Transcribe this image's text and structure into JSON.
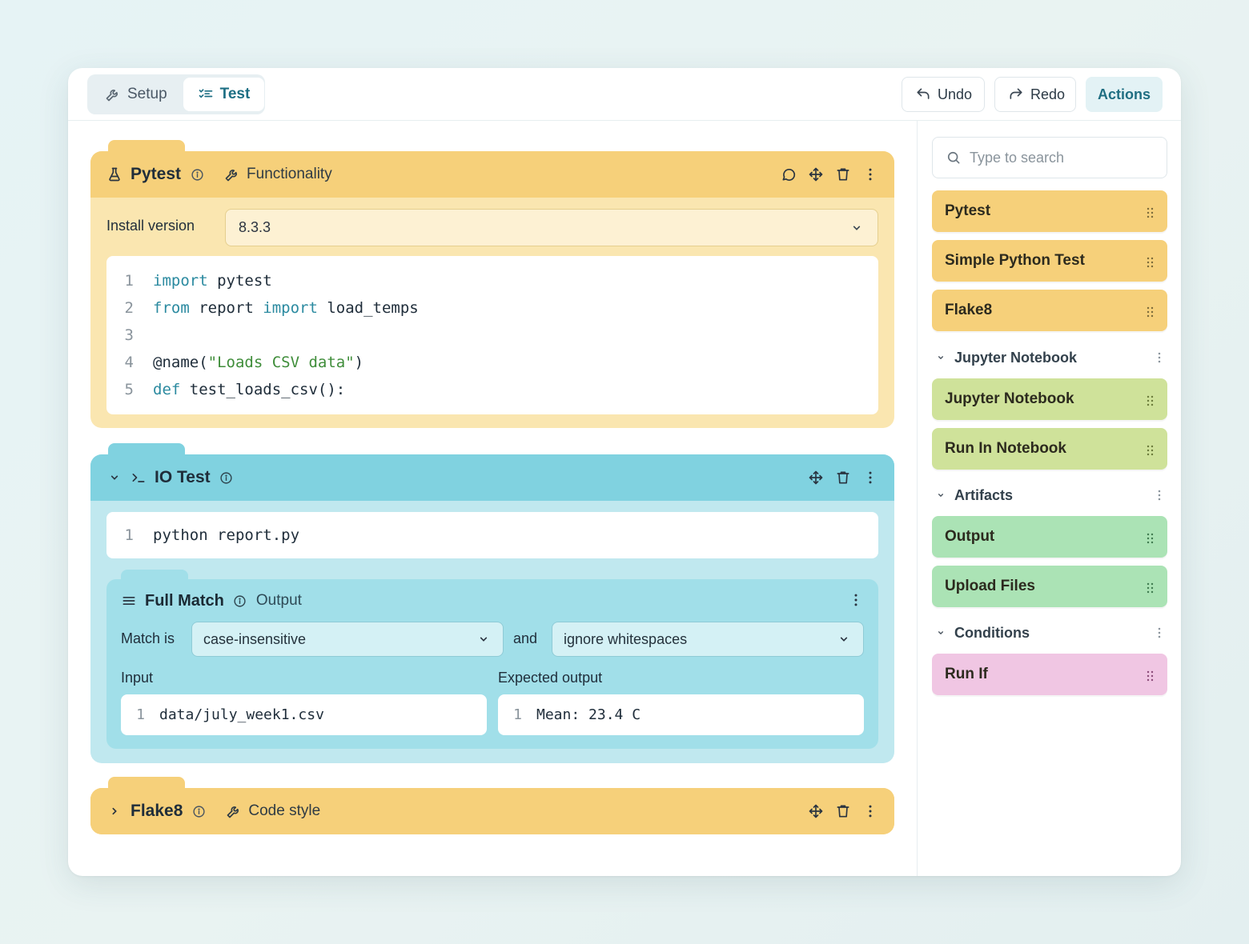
{
  "topbar": {
    "tabs": [
      {
        "label": "Setup",
        "icon": "wrench-icon"
      },
      {
        "label": "Test",
        "icon": "checklist-icon"
      }
    ],
    "undo_label": "Undo",
    "redo_label": "Redo",
    "actions_label": "Actions"
  },
  "blocks": {
    "pytest": {
      "title": "Pytest",
      "category": "Functionality",
      "install_label": "Install version",
      "install_version": "8.3.3",
      "code": [
        {
          "n": "1",
          "parts": [
            [
              "kw",
              "import"
            ],
            [
              "t",
              " pytest"
            ]
          ]
        },
        {
          "n": "2",
          "parts": [
            [
              "kw",
              "from"
            ],
            [
              "t",
              " report "
            ],
            [
              "kw",
              "import"
            ],
            [
              "t",
              " load_temps"
            ]
          ]
        },
        {
          "n": "3",
          "parts": []
        },
        {
          "n": "4",
          "parts": [
            [
              "t",
              "@name("
            ],
            [
              "str",
              "\"Loads CSV data\""
            ],
            [
              "t",
              ")"
            ]
          ]
        },
        {
          "n": "5",
          "parts": [
            [
              "kw",
              "def"
            ],
            [
              "t",
              " test_loads_csv():"
            ]
          ]
        }
      ]
    },
    "io_test": {
      "title": "IO Test",
      "command_line_no": "1",
      "command": "python report.py",
      "full_match": {
        "title": "Full Match",
        "category": "Output",
        "match_is_label": "Match is",
        "match_mode": "case-insensitive",
        "and_label": "and",
        "whitespace_mode": "ignore whitespaces",
        "input_label": "Input",
        "input_line_no": "1",
        "input_value": "data/july_week1.csv",
        "expected_label": "Expected output",
        "expected_line_no": "1",
        "expected_value": "Mean: 23.4 C"
      }
    },
    "flake8": {
      "title": "Flake8",
      "category": "Code style"
    }
  },
  "sidebar": {
    "search_placeholder": "Type to search",
    "items_top": [
      "Pytest",
      "Simple Python Test",
      "Flake8"
    ],
    "sections": [
      {
        "label": "Jupyter Notebook",
        "items": [
          "Jupyter Notebook",
          "Run In Notebook"
        ]
      },
      {
        "label": "Artifacts",
        "items": [
          "Output",
          "Upload Files"
        ]
      },
      {
        "label": "Conditions",
        "items": [
          "Run If"
        ]
      }
    ]
  },
  "colors": {
    "yellow": "#f6d07a",
    "lime": "#cfe29a",
    "green": "#abe3b5",
    "pink": "#f0c6e3",
    "teal": "#80d2e0"
  }
}
